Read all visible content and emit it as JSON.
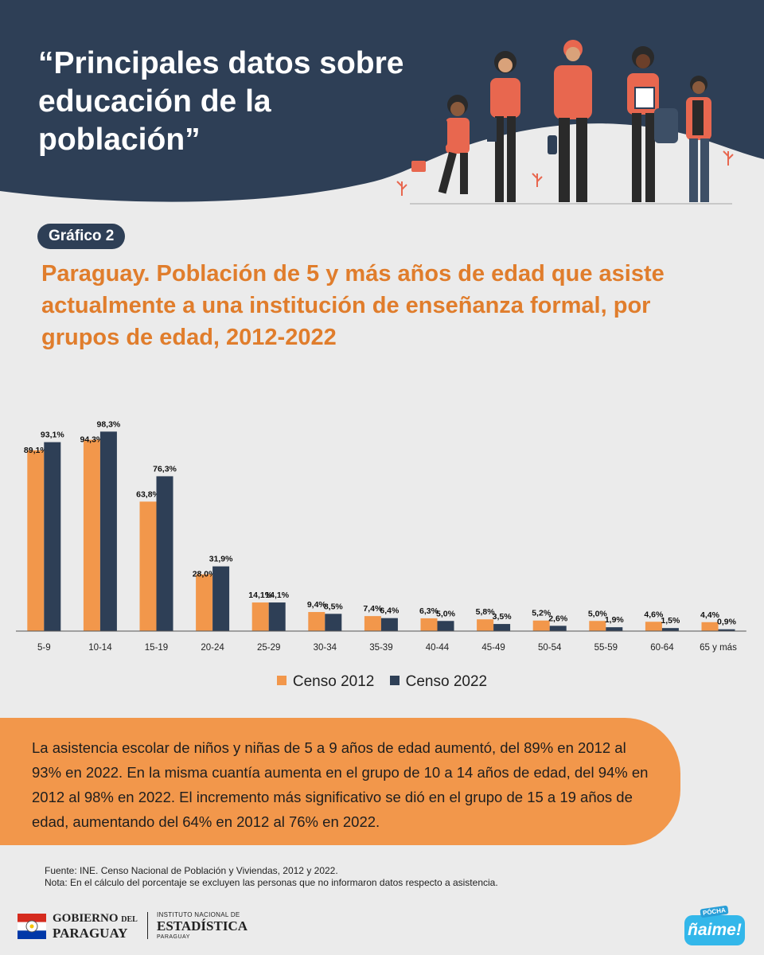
{
  "header": {
    "title": "“Principales datos sobre educación de la población”"
  },
  "chart_section": {
    "badge": "Gráfico 2",
    "title": "Paraguay. Población de 5 y más años de edad que asiste actualmente a una institución de enseñanza formal, por grupos de edad, 2012-2022"
  },
  "chart_data": {
    "type": "bar",
    "categories": [
      "5-9",
      "10-14",
      "15-19",
      "20-24",
      "25-29",
      "30-34",
      "35-39",
      "40-44",
      "45-49",
      "50-54",
      "55-59",
      "60-64",
      "65 y más"
    ],
    "series": [
      {
        "name": "Censo 2012",
        "color": "#f2974b",
        "values": [
          89.1,
          94.3,
          63.8,
          28.0,
          14.1,
          9.4,
          7.4,
          6.3,
          5.8,
          5.2,
          5.0,
          4.6,
          4.4
        ],
        "labels": [
          "89,1%",
          "94,3%",
          "63,8%",
          "28,0%",
          "14,1%",
          "9,4%",
          "7,4%",
          "6,3%",
          "5,8%",
          "5,2%",
          "5,0%",
          "4,6%",
          "4,4%"
        ]
      },
      {
        "name": "Censo 2022",
        "color": "#2e3f56",
        "values": [
          93.1,
          98.3,
          76.3,
          31.9,
          14.1,
          8.5,
          6.4,
          5.0,
          3.5,
          2.6,
          1.9,
          1.5,
          0.9
        ],
        "labels": [
          "93,1%",
          "98,3%",
          "76,3%",
          "31,9%",
          "14,1%",
          "8,5%",
          "6,4%",
          "5,0%",
          "3,5%",
          "2,6%",
          "1,9%",
          "1,5%",
          "0,9%"
        ]
      }
    ],
    "ylim": [
      0,
      100
    ],
    "grid": false,
    "legend_position": "bottom-center"
  },
  "summary": {
    "text": "La asistencia escolar de niños y niñas de 5 a 9 años de edad aumentó, del 89% en 2012 al 93% en 2022. En la misma cuantía aumenta en el grupo de 10 a 14 años de edad, del 94% en 2012 al 98% en 2022. El incremento más significativo se dió en el grupo de 15 a 19 años de edad, aumentando del 64% en 2012 al 76% en 2022."
  },
  "notes": {
    "source": "Fuente: INE. Censo Nacional de Población y Viviendas, 2012 y 2022.",
    "note": "Nota: En el cálculo del porcentaje se excluyen las personas que no informaron datos respecto a asistencia."
  },
  "footer": {
    "gobierno_main": "GOBIERNO",
    "gobierno_del": "DEL",
    "gobierno_country": "PARAGUAY",
    "ine_line1": "INSTITUTO NACIONAL DE",
    "ine_line2": "ESTADÍSTICA",
    "ine_line3": "PARAGUAY",
    "naime_top": "PÓCHA",
    "naime_main": "ñaime!"
  },
  "colors": {
    "header_bg": "#2e3f56",
    "accent_orange": "#e07d2c",
    "bar_2012": "#f2974b",
    "bar_2022": "#2e3f56",
    "summary_bg": "#f2974b",
    "page_bg": "#ebebeb"
  }
}
